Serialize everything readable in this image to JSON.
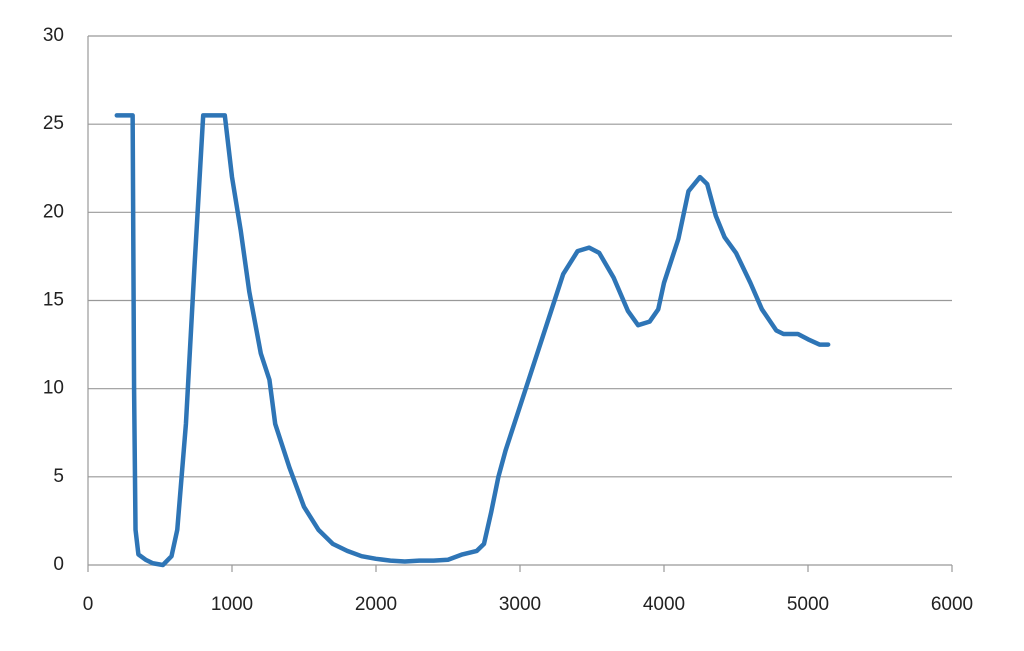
{
  "chart_data": {
    "type": "line",
    "x": [
      200,
      310,
      320,
      330,
      350,
      400,
      450,
      520,
      580,
      620,
      680,
      740,
      800,
      950,
      1000,
      1060,
      1120,
      1200,
      1260,
      1300,
      1400,
      1500,
      1600,
      1700,
      1800,
      1900,
      2000,
      2100,
      2200,
      2300,
      2400,
      2500,
      2600,
      2700,
      2750,
      2800,
      2850,
      2900,
      3000,
      3100,
      3200,
      3300,
      3400,
      3480,
      3550,
      3650,
      3750,
      3820,
      3900,
      3960,
      4000,
      4100,
      4170,
      4250,
      4300,
      4360,
      4420,
      4500,
      4600,
      4680,
      4780,
      4830,
      4930,
      5000,
      5080,
      5140
    ],
    "series": [
      {
        "color": "#2e75b6",
        "values": [
          25.5,
          25.5,
          10,
          2,
          0.6,
          0.3,
          0.1,
          0,
          0.5,
          2,
          8,
          17,
          25.5,
          25.5,
          22,
          19,
          15.5,
          12,
          10.5,
          8,
          5.5,
          3.3,
          2,
          1.2,
          0.8,
          0.5,
          0.35,
          0.25,
          0.2,
          0.25,
          0.25,
          0.3,
          0.6,
          0.8,
          1.2,
          3,
          5,
          6.5,
          9,
          11.5,
          14,
          16.5,
          17.8,
          18,
          17.7,
          16.3,
          14.4,
          13.6,
          13.8,
          14.5,
          16,
          18.5,
          21.2,
          22,
          21.6,
          19.8,
          18.6,
          17.7,
          16,
          14.5,
          13.3,
          13.1,
          13.1,
          12.8,
          12.5,
          12.5
        ]
      }
    ],
    "xlim": [
      0,
      6000
    ],
    "xticks": [
      0,
      1000,
      2000,
      3000,
      4000,
      5000,
      6000
    ],
    "ylim": [
      0,
      30
    ],
    "yticks": [
      0,
      5,
      10,
      15,
      20,
      25,
      30
    ],
    "grid": true
  }
}
